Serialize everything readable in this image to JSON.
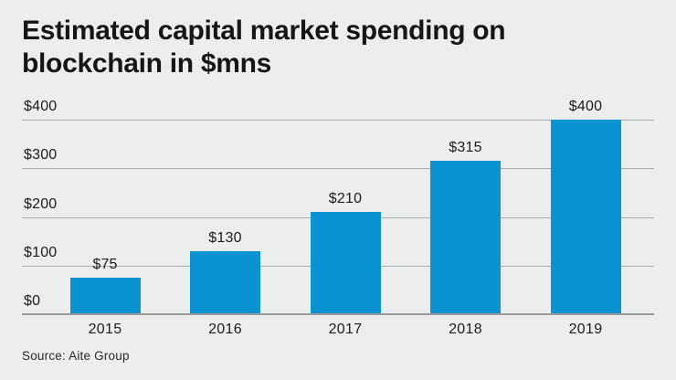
{
  "title": "Estimated capital market spending on blockchain in $mns",
  "source_note": "Source: Aite Group",
  "chart_data": {
    "type": "bar",
    "title": "Estimated capital market spending on blockchain in $mns",
    "categories": [
      "2015",
      "2016",
      "2017",
      "2018",
      "2019"
    ],
    "values": [
      75,
      130,
      210,
      315,
      400
    ],
    "value_labels": [
      "$75",
      "$130",
      "$210",
      "$315",
      "$400"
    ],
    "xlabel": "",
    "ylabel": "",
    "ylim": [
      0,
      400
    ],
    "y_tick_values": [
      0,
      100,
      200,
      300,
      400
    ],
    "y_tick_labels": [
      "$0",
      "$100",
      "$200",
      "$300",
      "$400"
    ],
    "grid": true,
    "legend": false,
    "source": "Source: Aite Group"
  },
  "colors": {
    "background": "#ECEDED",
    "bar": "#0A93D3",
    "gridline": "#ABACAC",
    "baseline": "#9A9C9C",
    "title_text": "#161616",
    "label_text": "#1C1C1C",
    "source_text": "#2A2A2A"
  }
}
